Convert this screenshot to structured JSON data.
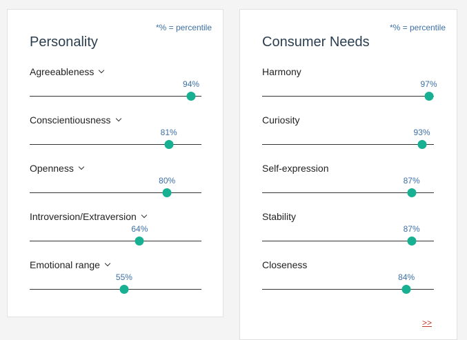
{
  "personality": {
    "note": "*% = percentile",
    "title": "Personality",
    "traits": [
      {
        "label": "Agreeableness",
        "pct_label": "94%",
        "value": 0.94
      },
      {
        "label": "Conscientiousness",
        "pct_label": "81%",
        "value": 0.81
      },
      {
        "label": "Openness",
        "pct_label": "80%",
        "value": 0.8
      },
      {
        "label": "Introversion/Extraversion",
        "pct_label": "64%",
        "value": 0.64
      },
      {
        "label": "Emotional range",
        "pct_label": "55%",
        "value": 0.55
      }
    ],
    "accent_color": "#17b092"
  },
  "needs": {
    "note": "*% = percentile",
    "title": "Consumer Needs",
    "traits": [
      {
        "label": "Harmony",
        "pct_label": "97%",
        "value": 0.97
      },
      {
        "label": "Curiosity",
        "pct_label": "93%",
        "value": 0.93
      },
      {
        "label": "Self-expression",
        "pct_label": "87%",
        "value": 0.87
      },
      {
        "label": "Stability",
        "pct_label": "87%",
        "value": 0.87
      },
      {
        "label": "Closeness",
        "pct_label": "84%",
        "value": 0.84
      }
    ],
    "more_link": ">>"
  }
}
